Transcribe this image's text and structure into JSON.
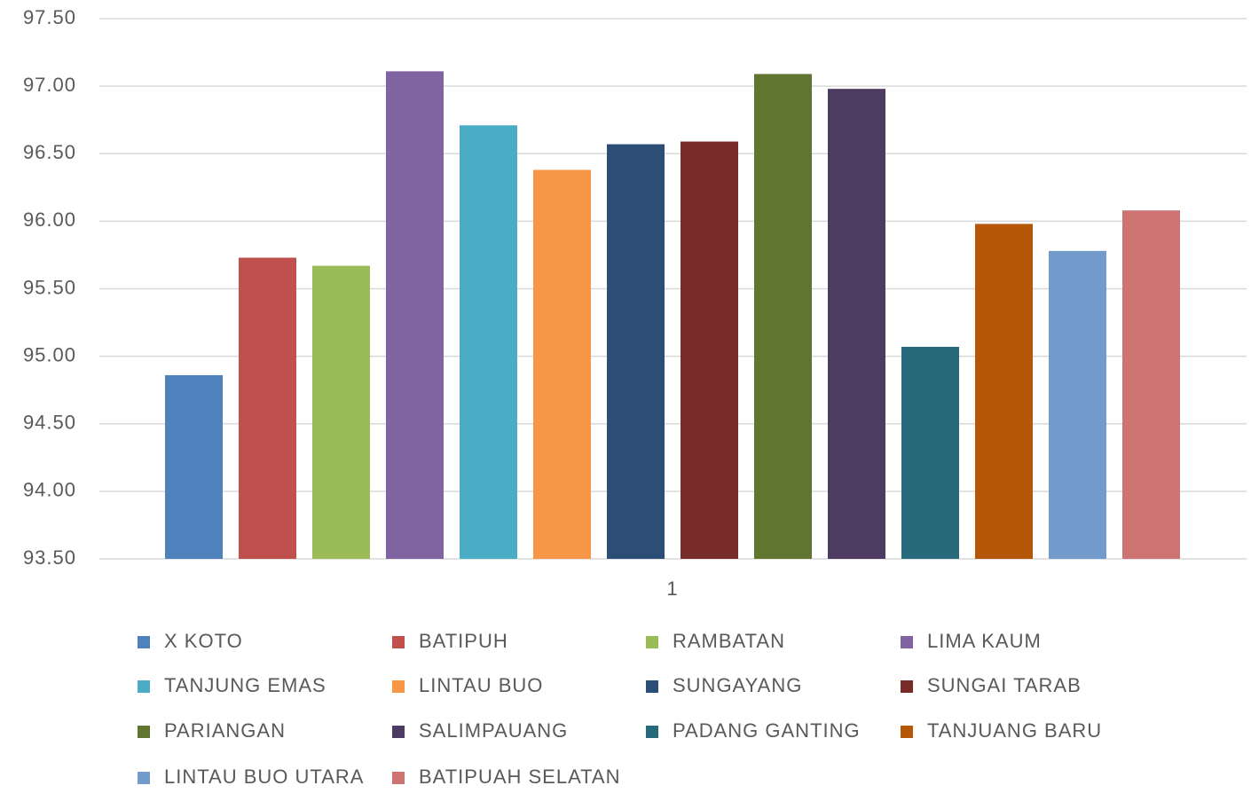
{
  "chart_data": {
    "type": "bar",
    "categories": [
      "1"
    ],
    "series": [
      {
        "name": "X KOTO",
        "color": "#4f81bd",
        "values": [
          94.86
        ]
      },
      {
        "name": "BATIPUH",
        "color": "#c0504d",
        "values": [
          95.73
        ]
      },
      {
        "name": "RAMBATAN",
        "color": "#9bbb59",
        "values": [
          95.67
        ]
      },
      {
        "name": "LIMA KAUM",
        "color": "#8064a2",
        "values": [
          97.11
        ]
      },
      {
        "name": "TANJUNG EMAS",
        "color": "#4bacc6",
        "values": [
          96.71
        ]
      },
      {
        "name": "LINTAU BUO",
        "color": "#f79646",
        "values": [
          96.38
        ]
      },
      {
        "name": "SUNGAYANG",
        "color": "#2c4d75",
        "values": [
          96.57
        ]
      },
      {
        "name": "SUNGAI TARAB",
        "color": "#772c2a",
        "values": [
          96.59
        ]
      },
      {
        "name": "PARIANGAN",
        "color": "#5f7530",
        "values": [
          97.09
        ]
      },
      {
        "name": "SALIMPAUANG",
        "color": "#4d3b62",
        "values": [
          96.98
        ]
      },
      {
        "name": "PADANG GANTING",
        "color": "#276a7c",
        "values": [
          95.07
        ]
      },
      {
        "name": "TANJUANG BARU",
        "color": "#b65708",
        "values": [
          95.98
        ]
      },
      {
        "name": "LINTAU BUO UTARA",
        "color": "#729aca",
        "values": [
          95.78
        ]
      },
      {
        "name": "BATIPUAH SELATAN",
        "color": "#cd7371",
        "values": [
          96.08
        ]
      }
    ],
    "ylim": [
      93.5,
      97.5
    ],
    "yticks": [
      {
        "value": 93.5,
        "label": "93.50"
      },
      {
        "value": 94,
        "label": "94.00"
      },
      {
        "value": 94.5,
        "label": "94.50"
      },
      {
        "value": 95,
        "label": "95.00"
      },
      {
        "value": 95.5,
        "label": "95.50"
      },
      {
        "value": 96,
        "label": "96.00"
      },
      {
        "value": 96.5,
        "label": "96.50"
      },
      {
        "value": 97,
        "label": "97.00"
      },
      {
        "value": 97.5,
        "label": "97.50"
      }
    ],
    "grid": true,
    "legend": "bottom"
  }
}
